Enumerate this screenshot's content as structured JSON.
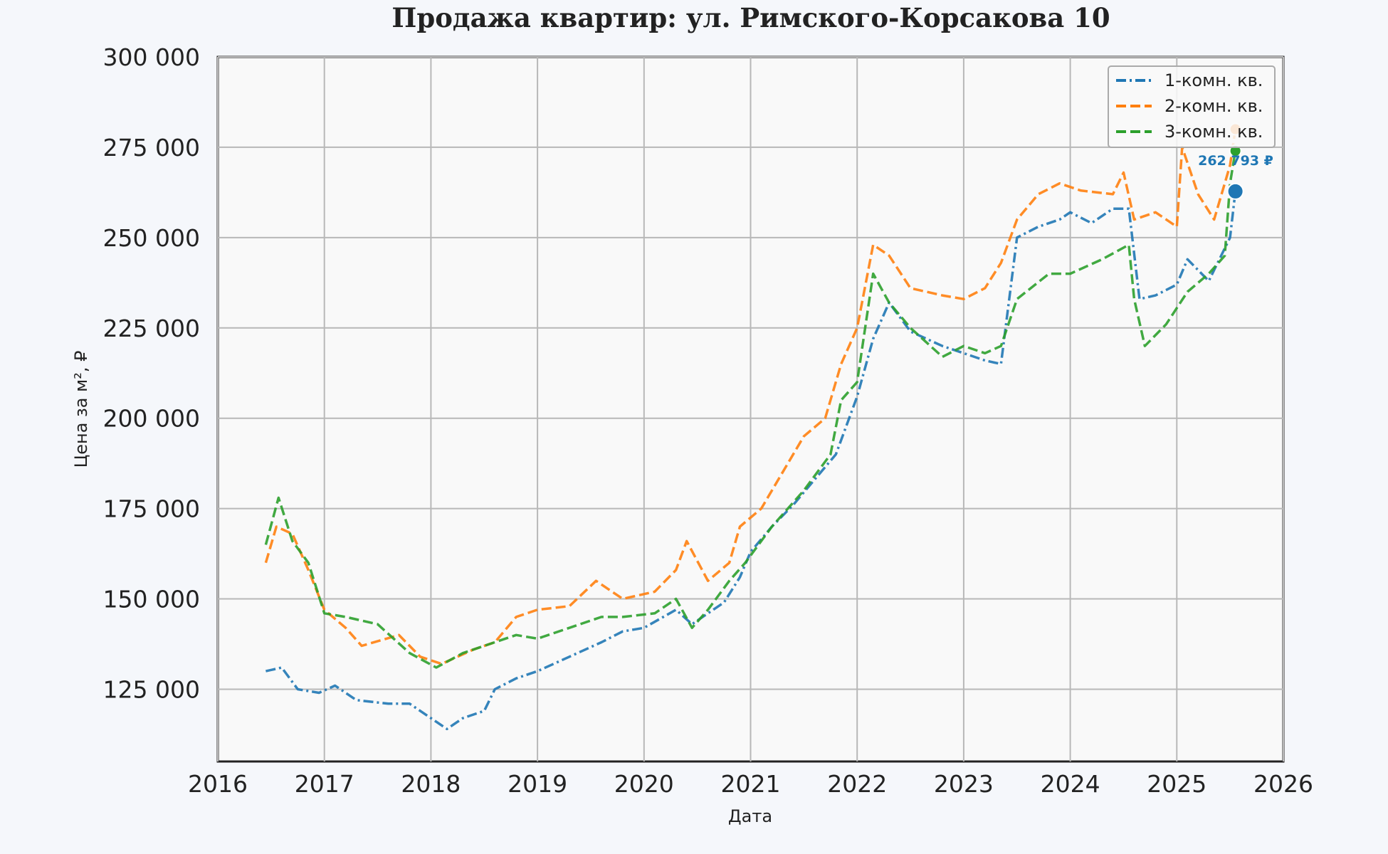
{
  "chart_data": {
    "type": "line",
    "title": "Продажа квартир: ул. Римского-Корсакова 10",
    "xlabel": "Дата",
    "ylabel": "Цена за м², ₽",
    "xlim": [
      2016,
      2026
    ],
    "ylim": [
      105000,
      300000
    ],
    "x_ticks": [
      2016,
      2017,
      2018,
      2019,
      2020,
      2021,
      2022,
      2023,
      2024,
      2025,
      2026
    ],
    "y_ticks": [
      125000,
      150000,
      175000,
      200000,
      225000,
      250000,
      275000,
      300000
    ],
    "x_tick_labels": [
      "2016",
      "2017",
      "2018",
      "2019",
      "2020",
      "2021",
      "2022",
      "2023",
      "2024",
      "2025",
      "2026"
    ],
    "y_tick_labels": [
      "125 000",
      "150 000",
      "175 000",
      "200 000",
      "225 000",
      "250 000",
      "275 000",
      "300 000"
    ],
    "grid": true,
    "legend_position": "top-right",
    "series": [
      {
        "name": "1-комн. кв.",
        "color": "#1f77b4",
        "dash": "dashdot",
        "x": [
          2016.45,
          2016.6,
          2016.75,
          2016.95,
          2017.1,
          2017.3,
          2017.6,
          2017.8,
          2018.0,
          2018.15,
          2018.3,
          2018.5,
          2018.6,
          2018.8,
          2019.0,
          2019.3,
          2019.6,
          2019.8,
          2020.0,
          2020.3,
          2020.45,
          2020.6,
          2020.75,
          2020.9,
          2021.0,
          2021.2,
          2021.4,
          2021.6,
          2021.8,
          2022.0,
          2022.15,
          2022.3,
          2022.5,
          2022.8,
          2023.0,
          2023.2,
          2023.35,
          2023.5,
          2023.7,
          2023.9,
          2024.0,
          2024.2,
          2024.4,
          2024.55,
          2024.65,
          2024.8,
          2025.0,
          2025.1,
          2025.3,
          2025.5,
          2025.55
        ],
        "y": [
          130000,
          131000,
          125000,
          124000,
          126000,
          122000,
          121000,
          121000,
          117000,
          114000,
          117000,
          119000,
          125000,
          128000,
          130000,
          134000,
          138000,
          141000,
          142000,
          147000,
          143000,
          146000,
          149000,
          156000,
          163000,
          170000,
          176000,
          183000,
          190000,
          206000,
          222000,
          232000,
          224000,
          220000,
          218000,
          216000,
          215000,
          250000,
          253000,
          255000,
          257000,
          254000,
          258000,
          258000,
          233000,
          234000,
          237000,
          244000,
          238000,
          250000,
          262793
        ]
      },
      {
        "name": "2-комн. кв.",
        "color": "#ff7f0e",
        "dash": "dashed",
        "x": [
          2016.45,
          2016.55,
          2016.7,
          2016.85,
          2017.0,
          2017.2,
          2017.35,
          2017.7,
          2017.9,
          2018.1,
          2018.4,
          2018.6,
          2018.8,
          2019.0,
          2019.3,
          2019.55,
          2019.8,
          2020.1,
          2020.3,
          2020.4,
          2020.6,
          2020.8,
          2020.9,
          2021.1,
          2021.3,
          2021.5,
          2021.7,
          2021.85,
          2022.0,
          2022.15,
          2022.3,
          2022.5,
          2022.8,
          2023.0,
          2023.2,
          2023.35,
          2023.5,
          2023.7,
          2023.9,
          2024.1,
          2024.4,
          2024.5,
          2024.6,
          2024.8,
          2025.0,
          2025.05,
          2025.2,
          2025.35,
          2025.5,
          2025.55
        ],
        "y": [
          160000,
          170000,
          168000,
          158000,
          147000,
          142000,
          137000,
          140000,
          134000,
          132000,
          136000,
          138000,
          145000,
          147000,
          148000,
          155000,
          150000,
          152000,
          158000,
          166000,
          155000,
          160000,
          170000,
          175000,
          185000,
          195000,
          200000,
          215000,
          225000,
          248000,
          245000,
          236000,
          234000,
          233000,
          236000,
          243000,
          255000,
          262000,
          265000,
          263000,
          262000,
          268000,
          255000,
          257000,
          253000,
          275000,
          262000,
          255000,
          270000,
          280000
        ]
      },
      {
        "name": "3-комн. кв.",
        "color": "#2ca02c",
        "dash": "dashed",
        "x": [
          2016.45,
          2016.57,
          2016.7,
          2016.85,
          2017.0,
          2017.2,
          2017.5,
          2017.8,
          2018.05,
          2018.3,
          2018.5,
          2018.8,
          2019.0,
          2019.3,
          2019.6,
          2019.8,
          2020.1,
          2020.3,
          2020.45,
          2020.6,
          2020.8,
          2020.95,
          2021.2,
          2021.5,
          2021.75,
          2021.85,
          2022.0,
          2022.15,
          2022.3,
          2022.5,
          2022.8,
          2023.0,
          2023.2,
          2023.35,
          2023.5,
          2023.8,
          2024.0,
          2024.3,
          2024.55,
          2024.6,
          2024.7,
          2024.9,
          2025.1,
          2025.3,
          2025.45,
          2025.5,
          2025.55
        ],
        "y": [
          165000,
          178000,
          166000,
          160000,
          146000,
          145000,
          143000,
          135000,
          131000,
          135000,
          137000,
          140000,
          139000,
          142000,
          145000,
          145000,
          146000,
          150000,
          142000,
          147000,
          155000,
          160000,
          170000,
          180000,
          190000,
          205000,
          210000,
          240000,
          232000,
          225000,
          217000,
          220000,
          218000,
          220000,
          233000,
          240000,
          240000,
          244000,
          248000,
          233000,
          220000,
          226000,
          235000,
          240000,
          245000,
          265000,
          274000
        ]
      }
    ],
    "endpoints": [
      {
        "series": "1-комн. кв.",
        "x": 2025.55,
        "y": 262793
      },
      {
        "series": "2-комн. кв.",
        "x": 2025.55,
        "y": 280000
      },
      {
        "series": "3-комн. кв.",
        "x": 2025.55,
        "y": 274000
      }
    ],
    "annotation": {
      "text": "262 793 ₽",
      "series": "1-комн. кв.",
      "color": "#1f77b4"
    }
  }
}
